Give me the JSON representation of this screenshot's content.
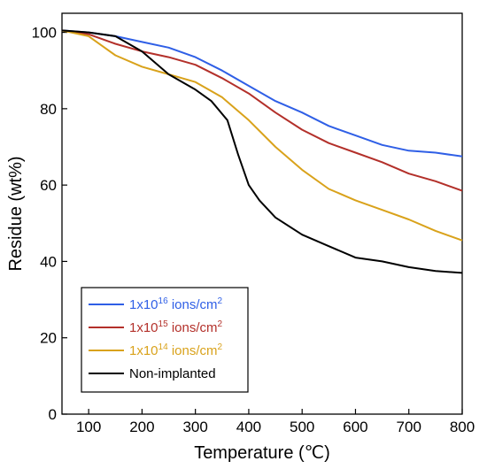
{
  "chart_data": {
    "type": "line",
    "xlabel": "Temperature (℃)",
    "ylabel": "Residue (wt%)",
    "xlim": [
      50,
      800
    ],
    "ylim": [
      0,
      105
    ],
    "x_ticks": [
      "100",
      "200",
      "300",
      "400",
      "500",
      "600",
      "700",
      "800"
    ],
    "y_ticks": [
      "0",
      "20",
      "40",
      "60",
      "80",
      "100"
    ],
    "legend_position": "bottom-left",
    "series": [
      {
        "name_base": "1x10",
        "name_exp": "16",
        "name_unit": " ions/cm",
        "name_unit_exp": "2",
        "color": "#2f5fe6",
        "x": [
          50,
          100,
          150,
          200,
          250,
          300,
          350,
          400,
          450,
          500,
          550,
          600,
          650,
          700,
          750,
          800
        ],
        "y": [
          100.5,
          100,
          99,
          97.5,
          96,
          93.5,
          90,
          86,
          82,
          79,
          75.5,
          73,
          70.5,
          69,
          68.5,
          67.5
        ]
      },
      {
        "name_base": "1x10",
        "name_exp": "15",
        "name_unit": " ions/cm",
        "name_unit_exp": "2",
        "color": "#b3302a",
        "x": [
          50,
          100,
          150,
          200,
          250,
          300,
          350,
          400,
          450,
          500,
          550,
          600,
          650,
          700,
          750,
          800
        ],
        "y": [
          100.5,
          99.5,
          97,
          95,
          93.5,
          91.5,
          88,
          84,
          79,
          74.5,
          71,
          68.5,
          66,
          63,
          61,
          58.5
        ]
      },
      {
        "name_base": "1x10",
        "name_exp": "14",
        "name_unit": " ions/cm",
        "name_unit_exp": "2",
        "color": "#d9a21b",
        "x": [
          50,
          100,
          150,
          200,
          250,
          300,
          350,
          400,
          450,
          500,
          550,
          600,
          650,
          700,
          750,
          800
        ],
        "y": [
          100.5,
          99,
          94,
          91,
          89,
          87,
          83,
          77,
          70,
          64,
          59,
          56,
          53.5,
          51,
          48,
          45.5
        ]
      },
      {
        "name": "Non-implanted",
        "color": "#000000",
        "x": [
          50,
          100,
          150,
          200,
          250,
          300,
          330,
          360,
          380,
          400,
          420,
          450,
          500,
          550,
          600,
          650,
          700,
          750,
          800
        ],
        "y": [
          100.5,
          100,
          99,
          95,
          89,
          85,
          82,
          77,
          68,
          60,
          56,
          51.5,
          47,
          44,
          41,
          40,
          38.5,
          37.5,
          37
        ]
      }
    ]
  }
}
